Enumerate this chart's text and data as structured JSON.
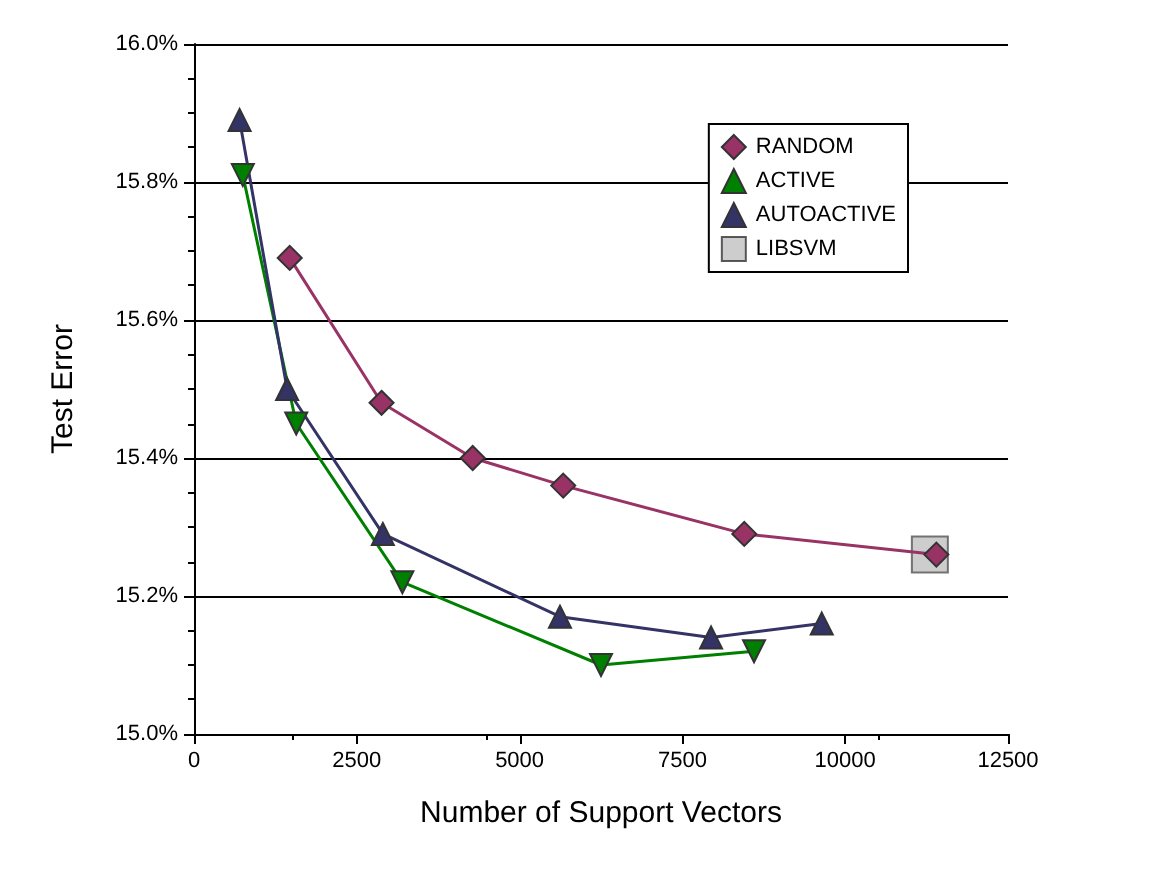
{
  "chart_data": {
    "type": "line",
    "xlabel": "Number of Support Vectors",
    "ylabel": "Test Error",
    "xlim": [
      0,
      12500
    ],
    "xticks": [
      0,
      2500,
      5000,
      7500,
      10000,
      12500
    ],
    "ylim": [
      15.0,
      16.0
    ],
    "yticks": [
      {
        "value": 15.0,
        "label": "15.0%"
      },
      {
        "value": 15.2,
        "label": "15.2%"
      },
      {
        "value": 15.4,
        "label": "15.4%"
      },
      {
        "value": 15.6,
        "label": "15.6%"
      },
      {
        "value": 15.8,
        "label": "15.8%"
      },
      {
        "value": 16.0,
        "label": "16.0%"
      }
    ],
    "grid": "y",
    "legend": "top right",
    "line_style": "solid",
    "series": [
      {
        "name": "RANDOM",
        "color": "#993366",
        "marker": "diamond",
        "x": [
          1470,
          2880,
          4280,
          5670,
          8450,
          11400
        ],
        "values": [
          15.69,
          15.48,
          15.4,
          15.36,
          15.29,
          15.26
        ]
      },
      {
        "name": "ACTIVE",
        "color": "#008000",
        "marker": "triangle-down",
        "x": [
          750,
          1570,
          3200,
          6250,
          8600
        ],
        "values": [
          15.81,
          15.45,
          15.22,
          15.1,
          15.12
        ]
      },
      {
        "name": "AUTOACTIVE",
        "color": "#333366",
        "marker": "triangle",
        "x": [
          700,
          1430,
          2900,
          5620,
          7940,
          9640
        ],
        "values": [
          15.89,
          15.5,
          15.29,
          15.17,
          15.14,
          15.16
        ]
      },
      {
        "name": "LIBSVM",
        "type": "scatter",
        "color": "#c0c0c0",
        "marker": "square",
        "x": [
          11300
        ],
        "values": [
          15.26
        ]
      }
    ]
  }
}
